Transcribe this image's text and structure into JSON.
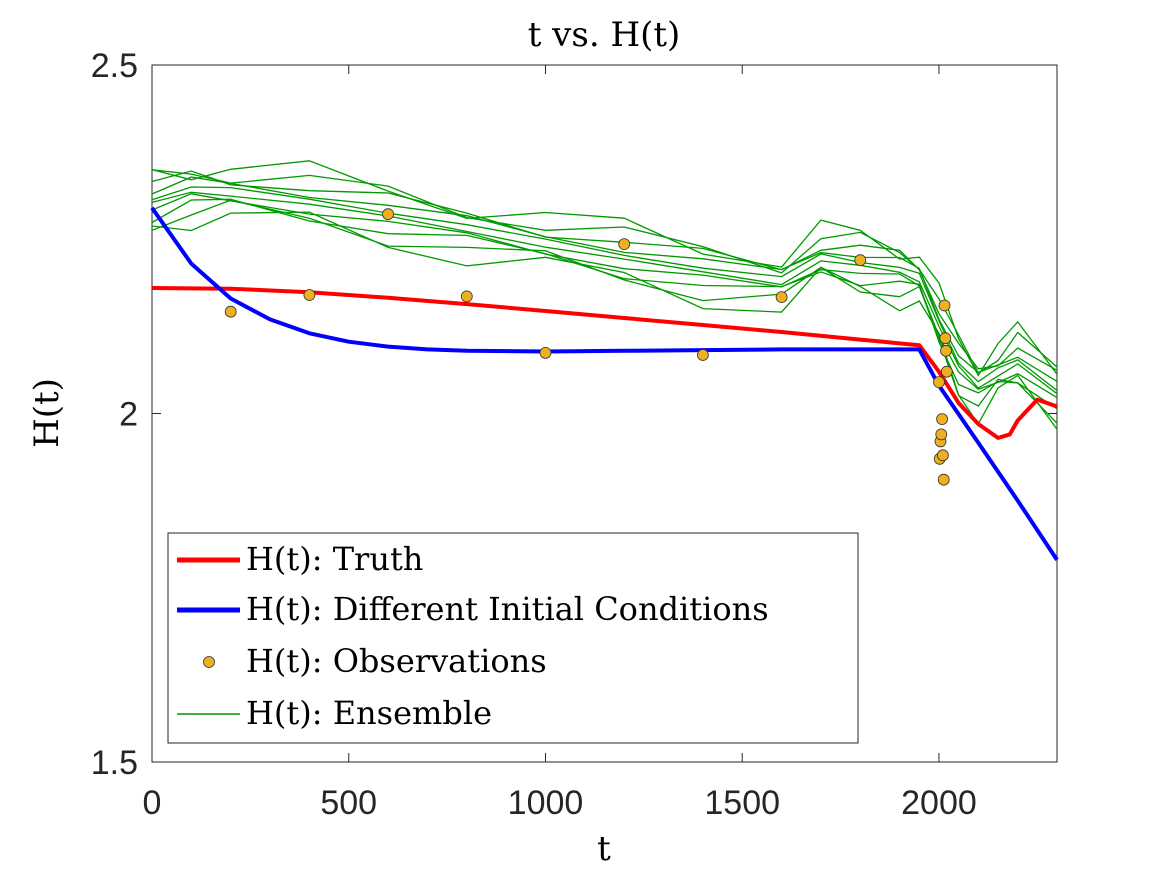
{
  "chart_data": {
    "type": "line",
    "title": "t vs. H(t)",
    "xlabel": "t",
    "ylabel": "H(t)",
    "xlim": [
      0,
      2300
    ],
    "ylim": [
      1.5,
      2.5
    ],
    "xticks": [
      "0",
      "500",
      "1000",
      "1500",
      "2000"
    ],
    "yticks": [
      "1.5",
      "2",
      "2.5"
    ],
    "grid": false,
    "legend_position": "bottom-left",
    "series": [
      {
        "name": "H(t): Truth",
        "kind": "line",
        "color": "#ff0000",
        "x": [
          0,
          200,
          400,
          600,
          800,
          1000,
          1200,
          1400,
          1600,
          1800,
          1950,
          2000,
          2050,
          2100,
          2150,
          2180,
          2200,
          2250,
          2300
        ],
        "y": [
          2.18,
          2.179,
          2.174,
          2.166,
          2.157,
          2.147,
          2.137,
          2.127,
          2.117,
          2.106,
          2.098,
          2.06,
          2.015,
          1.985,
          1.965,
          1.97,
          1.99,
          2.02,
          2.01
        ]
      },
      {
        "name": "H(t): Different Initial Conditions",
        "kind": "line",
        "color": "#0000ff",
        "x": [
          0,
          100,
          200,
          300,
          400,
          500,
          600,
          700,
          800,
          1000,
          1200,
          1400,
          1600,
          1800,
          1950,
          2000,
          2100,
          2200,
          2300
        ],
        "y": [
          2.295,
          2.215,
          2.165,
          2.135,
          2.115,
          2.103,
          2.096,
          2.092,
          2.09,
          2.089,
          2.09,
          2.091,
          2.092,
          2.092,
          2.092,
          2.04,
          1.958,
          1.875,
          1.79
        ]
      },
      {
        "name": "H(t): Observations",
        "kind": "scatter",
        "color": "#edb120",
        "x": [
          200,
          400,
          600,
          800,
          1000,
          1200,
          1400,
          1600,
          1800,
          2000,
          2002,
          2004,
          2006,
          2008,
          2010,
          2012,
          2014,
          2016,
          2018,
          2020
        ],
        "y": [
          2.146,
          2.17,
          2.286,
          2.168,
          2.087,
          2.243,
          2.084,
          2.167,
          2.22,
          2.045,
          1.935,
          1.96,
          1.97,
          1.992,
          1.94,
          1.905,
          2.155,
          2.108,
          2.09,
          2.06
        ]
      },
      {
        "name": "H(t): Ensemble",
        "kind": "line-ensemble",
        "color": "#009900",
        "members": 10,
        "x": [
          0,
          100,
          200,
          400,
          600,
          800,
          1000,
          1200,
          1400,
          1600,
          1700,
          1800,
          1900,
          1950,
          2000,
          2050,
          2100,
          2150,
          2200,
          2300
        ],
        "y": [
          2.305,
          2.32,
          2.318,
          2.305,
          2.285,
          2.265,
          2.245,
          2.225,
          2.205,
          2.19,
          2.225,
          2.215,
          2.205,
          2.195,
          2.13,
          2.07,
          2.04,
          2.06,
          2.075,
          2.03
        ]
      }
    ]
  }
}
